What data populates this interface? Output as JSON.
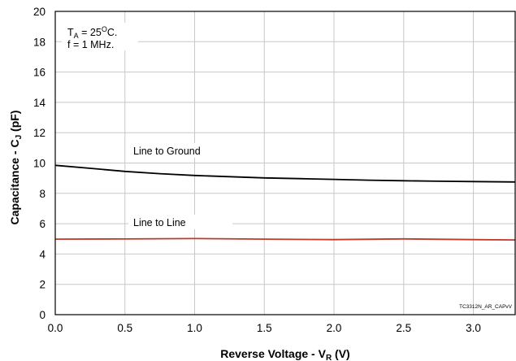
{
  "chart_data": {
    "type": "line",
    "xlabel": "Reverse Voltage - V",
    "xlabel_sub": "R",
    "xlabel_suffix": " (V)",
    "ylabel": "Capacitance - C",
    "ylabel_sub": "J",
    "ylabel_suffix": " (pF)",
    "xlim": [
      0,
      3.3
    ],
    "ylim": [
      0,
      20
    ],
    "xticks": [
      "0.0",
      "0.5",
      "1.0",
      "1.5",
      "2.0",
      "2.5",
      "3.0"
    ],
    "yticks": [
      "0",
      "2",
      "4",
      "6",
      "8",
      "10",
      "12",
      "14",
      "16",
      "18",
      "20"
    ],
    "grid": true,
    "annotations": {
      "line1_prefix": "T",
      "line1_sub": "A",
      "line1_value": " = 25",
      "line1_sup": "O",
      "line1_unit": "C.",
      "line2": "f = 1 MHz."
    },
    "part_code": "TC3312N_AR_CAPvV",
    "series": [
      {
        "name": "Line to Ground",
        "color": "#000000",
        "x": [
          0,
          0.25,
          0.5,
          0.75,
          1.0,
          1.25,
          1.5,
          1.75,
          2.0,
          2.25,
          2.5,
          2.75,
          3.0,
          3.3
        ],
        "y": [
          9.85,
          9.65,
          9.45,
          9.3,
          9.18,
          9.1,
          9.02,
          8.97,
          8.92,
          8.87,
          8.83,
          8.8,
          8.78,
          8.75
        ]
      },
      {
        "name": "Line to Line",
        "color": "#c0392b",
        "x": [
          0,
          0.5,
          1.0,
          1.5,
          2.0,
          2.5,
          3.0,
          3.3
        ],
        "y": [
          4.98,
          4.99,
          5.02,
          4.98,
          4.95,
          5.0,
          4.95,
          4.93
        ]
      }
    ]
  }
}
